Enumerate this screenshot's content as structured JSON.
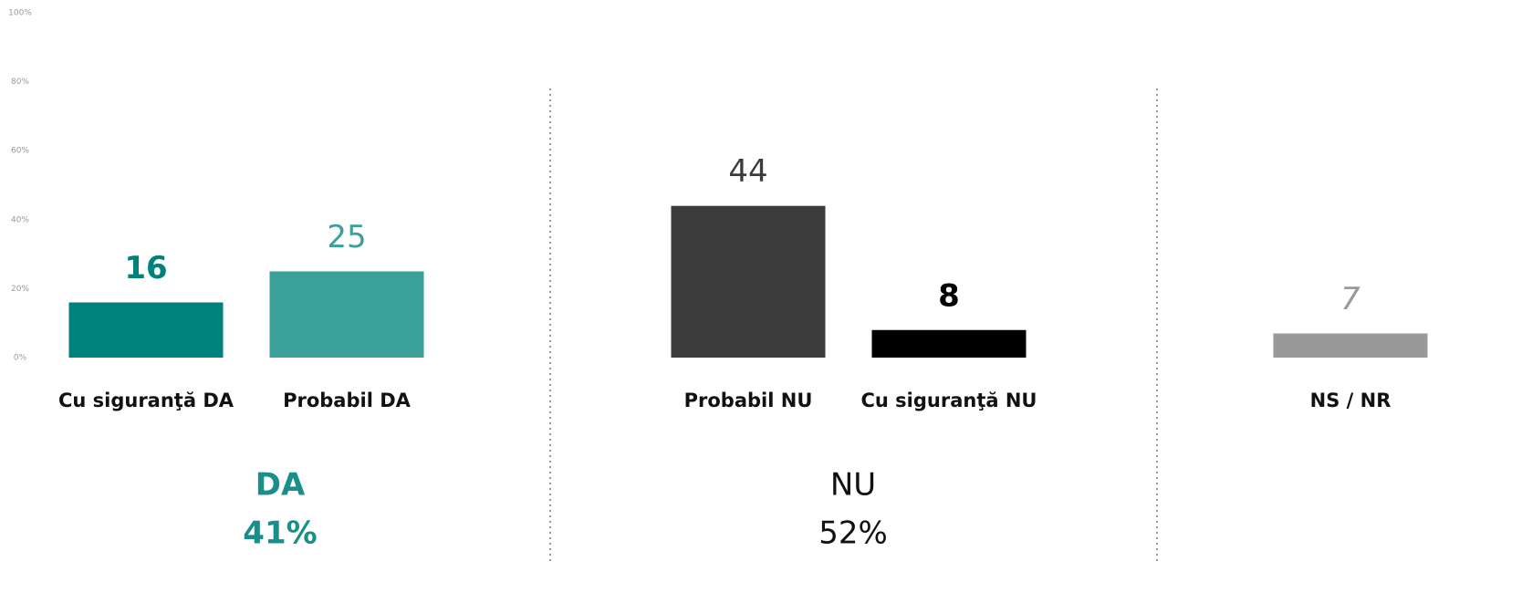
{
  "chart_data": {
    "type": "bar",
    "categories": [
      "Cu siguranţă DA",
      "Probabil DA",
      "Probabil NU",
      "Cu siguranţă NU",
      "NS / NR"
    ],
    "values": [
      16,
      25,
      44,
      8,
      7
    ],
    "colors": [
      "#00827c",
      "#3b9f9a",
      "#3c3c3c",
      "#000000",
      "#999999"
    ],
    "ylim": [
      0,
      100
    ],
    "yticks": [
      {
        "value": 0,
        "label": "0%"
      },
      {
        "value": 20,
        "label": "20%"
      },
      {
        "value": 40,
        "label": "40%"
      },
      {
        "value": 60,
        "label": "60%"
      },
      {
        "value": 80,
        "label": "80%"
      },
      {
        "value": 100,
        "label": "100%"
      }
    ],
    "groups": [
      {
        "label": "DA",
        "total": "41%"
      },
      {
        "label": "NU",
        "total": "52%"
      }
    ]
  }
}
